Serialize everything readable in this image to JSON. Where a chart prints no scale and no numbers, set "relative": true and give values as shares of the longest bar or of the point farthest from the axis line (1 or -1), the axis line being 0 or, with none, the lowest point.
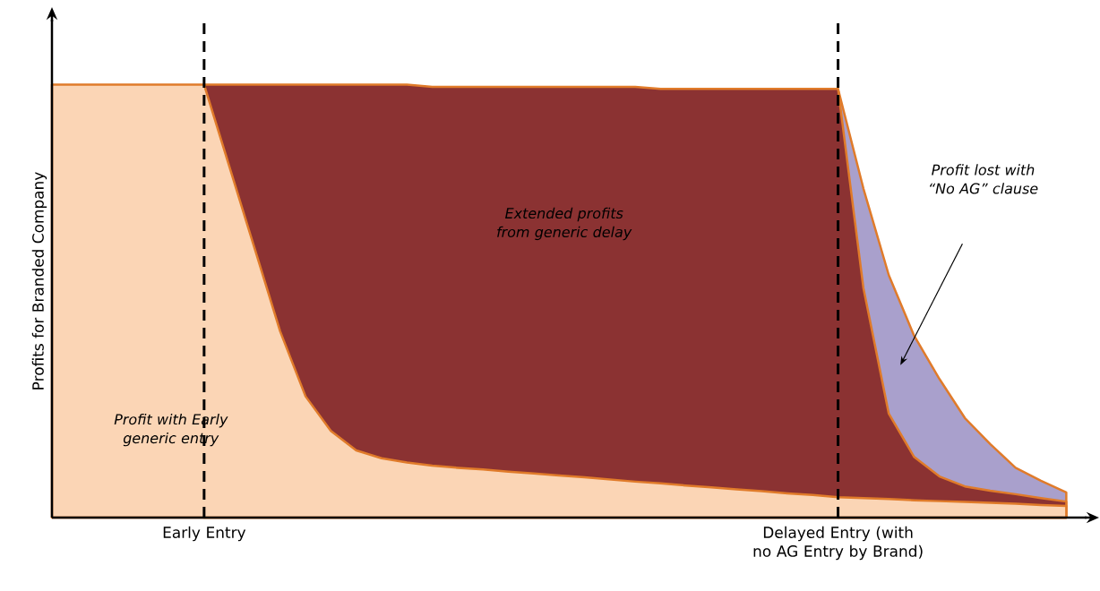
{
  "chart_data": {
    "type": "area",
    "relative": true,
    "ylabel": "Profits for Branded Company",
    "categories": [
      null,
      null,
      null,
      null,
      null,
      null,
      "Early Entry",
      null,
      null,
      null,
      null,
      null,
      null,
      null,
      null,
      null,
      null,
      null,
      null,
      null,
      null,
      null,
      null,
      null,
      null,
      null,
      null,
      null,
      null,
      null,
      null,
      "Delayed Entry (with no AG Entry by Brand)",
      null,
      null,
      null,
      null,
      null,
      null,
      null,
      null,
      null
    ],
    "series": [
      {
        "color": "#a9a0cc",
        "values": [
          null,
          null,
          null,
          null,
          null,
          null,
          null,
          null,
          null,
          null,
          null,
          null,
          null,
          null,
          null,
          null,
          null,
          null,
          null,
          null,
          null,
          null,
          null,
          null,
          null,
          null,
          null,
          null,
          null,
          null,
          null,
          0.99,
          0.76,
          0.56,
          0.42,
          0.32,
          0.23,
          0.17,
          0.115,
          0.085,
          0.058
        ]
      },
      {
        "color": "#8b3232",
        "values": [
          null,
          null,
          null,
          null,
          null,
          null,
          1.0,
          1.0,
          1.0,
          1.0,
          1.0,
          1.0,
          1.0,
          1.0,
          1.0,
          0.995,
          0.995,
          0.995,
          0.995,
          0.995,
          0.995,
          0.995,
          0.995,
          0.995,
          0.99,
          0.99,
          0.99,
          0.99,
          0.99,
          0.99,
          0.99,
          0.99,
          0.53,
          0.24,
          0.14,
          0.095,
          0.072,
          0.062,
          0.054,
          0.045,
          0.037
        ]
      },
      {
        "color": "#fbd5b5",
        "values": [
          1.0,
          1.0,
          1.0,
          1.0,
          1.0,
          1.0,
          1.0,
          0.81,
          0.62,
          0.43,
          0.28,
          0.2,
          0.155,
          0.137,
          0.127,
          0.12,
          0.115,
          0.111,
          0.106,
          0.102,
          0.097,
          0.093,
          0.088,
          0.083,
          0.079,
          0.074,
          0.07,
          0.065,
          0.061,
          0.056,
          0.052,
          0.047,
          0.045,
          0.043,
          0.04,
          0.038,
          0.036,
          0.034,
          0.032,
          0.029,
          0.027
        ]
      }
    ],
    "ref_lines": [
      {
        "axis": "x",
        "value": "Early Entry",
        "line_style": "dashed",
        "color": "#000000"
      },
      {
        "axis": "x",
        "value": "Delayed Entry (with no AG Entry by Brand)",
        "line_style": "dashed",
        "color": "#000000"
      }
    ],
    "annotations": [
      "*Extended profits from generic delay*",
      "*Profit with Early generic entry*",
      "*Profit lost with “No AG” clause*"
    ]
  }
}
